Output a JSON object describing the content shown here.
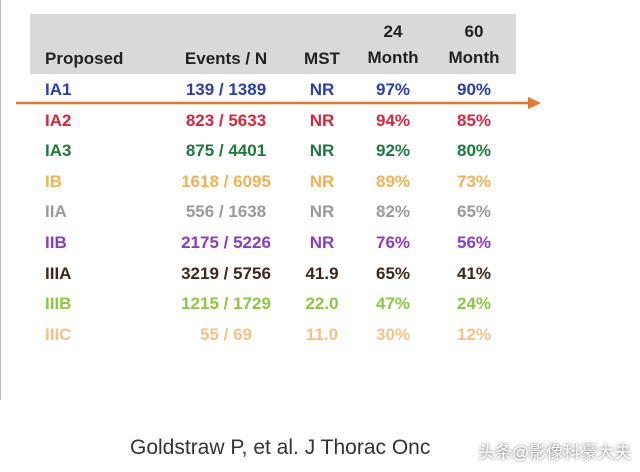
{
  "table": {
    "columns": [
      "Proposed",
      "Events / N",
      "MST",
      "24\nMonth",
      "60\nMonth"
    ],
    "rows": [
      {
        "color": "#2a3db4",
        "cells": [
          "IA1",
          "139 / 1389",
          "NR",
          "97%",
          "90%"
        ]
      },
      {
        "color": "#d9263a",
        "cells": [
          "IA2",
          "823 / 5633",
          "NR",
          "94%",
          "85%"
        ]
      },
      {
        "color": "#1c7a3c",
        "cells": [
          "IA3",
          "875 / 4401",
          "NR",
          "92%",
          "80%"
        ]
      },
      {
        "color": "#f2b253",
        "cells": [
          "IB",
          "1618 / 6095",
          "NR",
          "89%",
          "73%"
        ]
      },
      {
        "color": "#9a9a9a",
        "cells": [
          "IIA",
          "556 / 1638",
          "NR",
          "82%",
          "65%"
        ]
      },
      {
        "color": "#8a3cc2",
        "cells": [
          "IIB",
          "2175 / 5226",
          "NR",
          "76%",
          "56%"
        ]
      },
      {
        "color": "#3b2a1c",
        "cells": [
          "IIIA",
          "3219 / 5756",
          "41.9",
          "65%",
          "41%"
        ]
      },
      {
        "color": "#8fc641",
        "cells": [
          "IIIB",
          "1215 / 1729",
          "22.0",
          "47%",
          "24%"
        ]
      },
      {
        "color": "#f2c388",
        "cells": [
          "IIIC",
          "55 / 69",
          "11.0",
          "30%",
          "12%"
        ]
      }
    ]
  },
  "footer": {
    "citation": "Goldstraw P, et al. J Thorac Onc",
    "watermark": "头条@影像科豪大夫"
  }
}
